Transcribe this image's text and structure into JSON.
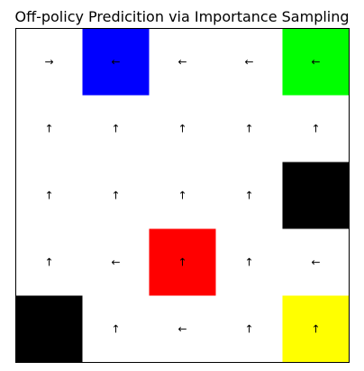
{
  "title": "Off-policy Predicition via Importance Sampling",
  "grid": {
    "rows": 5,
    "cols": 5,
    "cells": [
      [
        {
          "fill": null,
          "arrow": "→",
          "direction": "right"
        },
        {
          "fill": "#0000ff",
          "arrow": "←",
          "direction": "left"
        },
        {
          "fill": null,
          "arrow": "←",
          "direction": "left"
        },
        {
          "fill": null,
          "arrow": "←",
          "direction": "left"
        },
        {
          "fill": "#00ff00",
          "arrow": "←",
          "direction": "left"
        }
      ],
      [
        {
          "fill": null,
          "arrow": "↑",
          "direction": "up"
        },
        {
          "fill": null,
          "arrow": "↑",
          "direction": "up"
        },
        {
          "fill": null,
          "arrow": "↑",
          "direction": "up"
        },
        {
          "fill": null,
          "arrow": "↑",
          "direction": "up"
        },
        {
          "fill": null,
          "arrow": "↑",
          "direction": "up"
        }
      ],
      [
        {
          "fill": null,
          "arrow": "↑",
          "direction": "up"
        },
        {
          "fill": null,
          "arrow": "↑",
          "direction": "up"
        },
        {
          "fill": null,
          "arrow": "↑",
          "direction": "up"
        },
        {
          "fill": null,
          "arrow": "↑",
          "direction": "up"
        },
        {
          "fill": "#000000",
          "arrow": "",
          "direction": ""
        }
      ],
      [
        {
          "fill": null,
          "arrow": "↑",
          "direction": "up"
        },
        {
          "fill": null,
          "arrow": "←",
          "direction": "left"
        },
        {
          "fill": "#ff0000",
          "arrow": "↑",
          "direction": "up"
        },
        {
          "fill": null,
          "arrow": "↑",
          "direction": "up"
        },
        {
          "fill": null,
          "arrow": "←",
          "direction": "left"
        }
      ],
      [
        {
          "fill": "#000000",
          "arrow": "",
          "direction": ""
        },
        {
          "fill": null,
          "arrow": "↑",
          "direction": "up"
        },
        {
          "fill": null,
          "arrow": "←",
          "direction": "left"
        },
        {
          "fill": null,
          "arrow": "↑",
          "direction": "up"
        },
        {
          "fill": "#ffff00",
          "arrow": "↑",
          "direction": "up"
        }
      ]
    ]
  }
}
